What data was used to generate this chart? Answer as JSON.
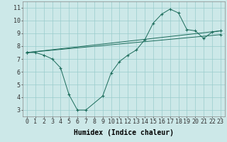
{
  "xlabel": "Humidex (Indice chaleur)",
  "background_color": "#cce8e8",
  "grid_color": "#99cccc",
  "line_color": "#1a6b5a",
  "xlim": [
    -0.5,
    23.5
  ],
  "ylim": [
    2.5,
    11.5
  ],
  "xticks": [
    0,
    1,
    2,
    3,
    4,
    5,
    6,
    7,
    8,
    9,
    10,
    11,
    12,
    13,
    14,
    15,
    16,
    17,
    18,
    19,
    20,
    21,
    22,
    23
  ],
  "yticks": [
    3,
    4,
    5,
    6,
    7,
    8,
    9,
    10,
    11
  ],
  "line1_x": [
    0,
    1,
    2,
    3,
    4,
    5,
    6,
    7,
    9,
    10,
    11,
    12,
    13,
    14,
    15,
    16,
    17,
    18,
    19,
    20,
    21,
    22,
    23
  ],
  "line1_y": [
    7.5,
    7.5,
    7.3,
    7.0,
    6.3,
    4.2,
    3.0,
    3.0,
    4.1,
    5.9,
    6.8,
    7.3,
    7.7,
    8.5,
    9.8,
    10.5,
    10.9,
    10.6,
    9.3,
    9.2,
    8.6,
    9.1,
    9.2
  ],
  "line2_x": [
    0,
    23
  ],
  "line2_y": [
    7.5,
    9.2
  ],
  "line3_x": [
    0,
    23
  ],
  "line3_y": [
    7.5,
    8.9
  ],
  "marker": "+",
  "markersize": 3,
  "linewidth": 0.7,
  "xlabel_fontsize": 7,
  "tick_fontsize": 6
}
